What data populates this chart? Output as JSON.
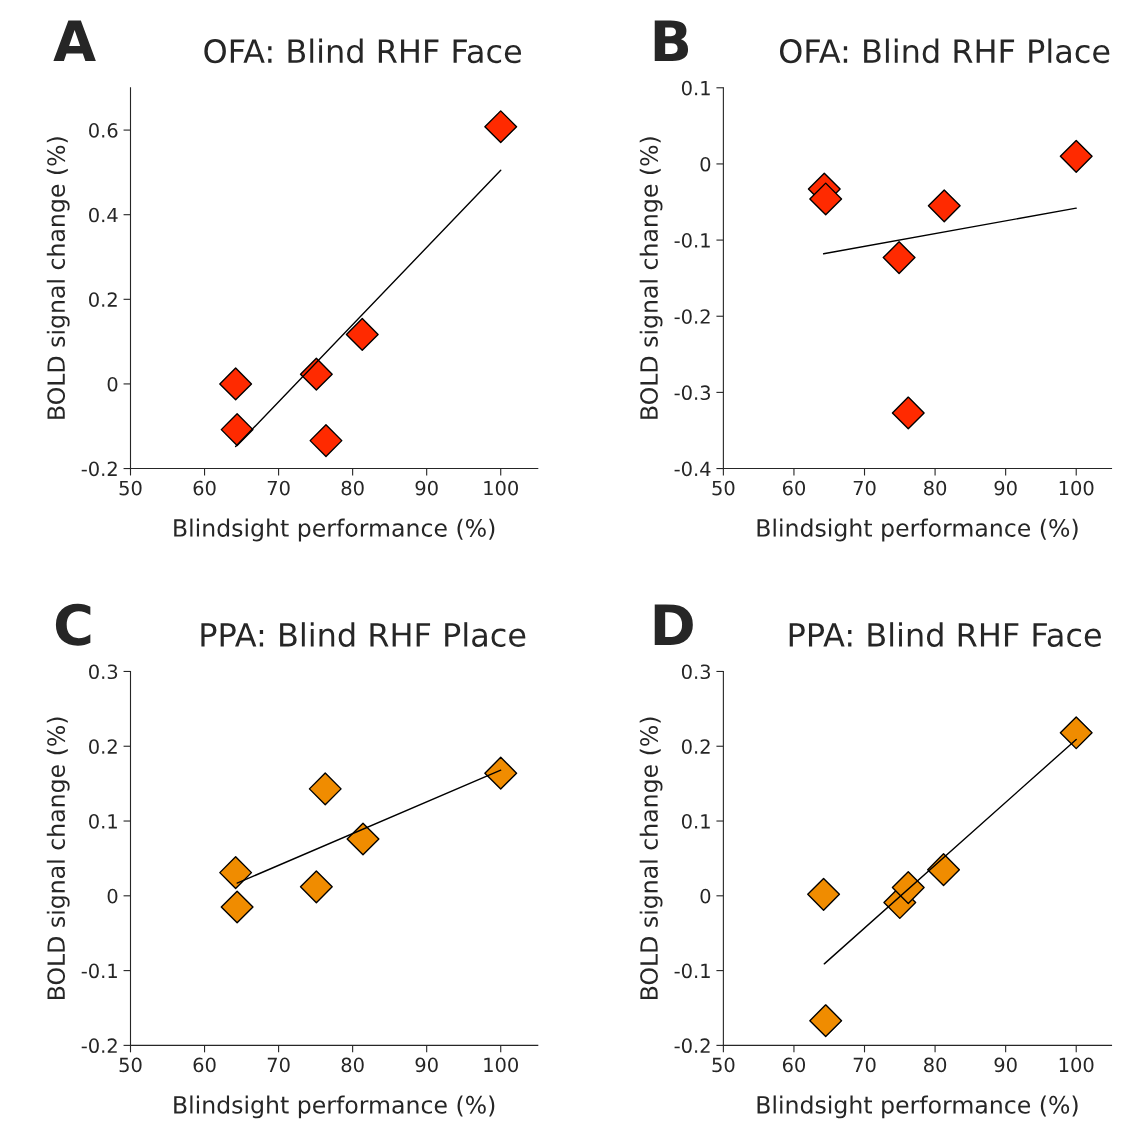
{
  "chart_data": [
    {
      "type": "scatter",
      "title": "OFA: Blind RHF Face",
      "annotations": [
        "A"
      ],
      "xlabel": "Blindsight performance (%)",
      "ylabel": "BOLD signal change (%)",
      "xlim": [
        50,
        105
      ],
      "xticks": [
        50,
        60,
        70,
        80,
        90,
        100
      ],
      "ylim": [
        -0.2,
        0.7
      ],
      "yticks": [
        -0.2,
        0,
        0.2,
        0.4,
        0.6
      ],
      "marker": "diamond",
      "legend": false,
      "grid": false,
      "series": [
        {
          "color": "#ff2a00",
          "x": [
            64.2,
            64.4,
            75.1,
            76.4,
            81.3,
            100
          ],
          "values": [
            0.0,
            -0.108,
            0.023,
            -0.134,
            0.117,
            0.608
          ]
        },
        {
          "type": "line",
          "marker": "none",
          "color": "#000000",
          "x": [
            64.2,
            100
          ],
          "values": [
            -0.148,
            0.505
          ]
        }
      ]
    },
    {
      "type": "scatter",
      "title": "OFA: Blind RHF Place",
      "annotations": [
        "B"
      ],
      "xlabel": "Blindsight performance (%)",
      "ylabel": "BOLD signal change (%)",
      "xlim": [
        50,
        105
      ],
      "xticks": [
        50,
        60,
        70,
        80,
        90,
        100
      ],
      "ylim": [
        -0.4,
        0.1
      ],
      "yticks": [
        -0.4,
        -0.3,
        -0.2,
        -0.1,
        0,
        0.1
      ],
      "marker": "diamond",
      "legend": false,
      "grid": false,
      "series": [
        {
          "color": "#ff2a00",
          "x": [
            64.3,
            64.5,
            74.9,
            76.2,
            81.3,
            100
          ],
          "values": [
            -0.033,
            -0.046,
            -0.123,
            -0.327,
            -0.055,
            0.01
          ]
        },
        {
          "type": "line",
          "marker": "none",
          "color": "#000000",
          "x": [
            64.2,
            100
          ],
          "values": [
            -0.118,
            -0.058
          ]
        }
      ]
    },
    {
      "type": "scatter",
      "title": "PPA: Blind RHF Place",
      "annotations": [
        "C"
      ],
      "xlabel": "Blindsight performance (%)",
      "ylabel": "BOLD signal change (%)",
      "xlim": [
        50,
        105
      ],
      "xticks": [
        50,
        60,
        70,
        80,
        90,
        100
      ],
      "ylim": [
        -0.2,
        0.3
      ],
      "yticks": [
        -0.2,
        -0.1,
        0,
        0.1,
        0.2,
        0.3
      ],
      "marker": "diamond",
      "legend": false,
      "grid": false,
      "series": [
        {
          "color": "#f08c00",
          "x": [
            64.2,
            64.4,
            75.1,
            76.3,
            81.4,
            100
          ],
          "values": [
            0.031,
            -0.015,
            0.012,
            0.143,
            0.076,
            0.164
          ]
        },
        {
          "type": "line",
          "marker": "none",
          "color": "#000000",
          "x": [
            64.4,
            100
          ],
          "values": [
            0.017,
            0.168
          ]
        }
      ]
    },
    {
      "type": "scatter",
      "title": "PPA: Blind RHF Face",
      "annotations": [
        "D"
      ],
      "xlabel": "Blindsight performance (%)",
      "ylabel": "BOLD signal change (%)",
      "xlim": [
        50,
        105
      ],
      "xticks": [
        50,
        60,
        70,
        80,
        90,
        100
      ],
      "ylim": [
        -0.2,
        0.3
      ],
      "yticks": [
        -0.2,
        -0.1,
        0,
        0.1,
        0.2,
        0.3
      ],
      "marker": "diamond",
      "legend": false,
      "grid": false,
      "series": [
        {
          "color": "#f08c00",
          "x": [
            64.2,
            64.5,
            75,
            76.2,
            81.2,
            100
          ],
          "values": [
            0.002,
            -0.167,
            -0.009,
            0.011,
            0.035,
            0.218
          ]
        },
        {
          "type": "line",
          "marker": "none",
          "color": "#000000",
          "x": [
            64.3,
            100
          ],
          "values": [
            -0.091,
            0.209
          ]
        }
      ]
    }
  ]
}
